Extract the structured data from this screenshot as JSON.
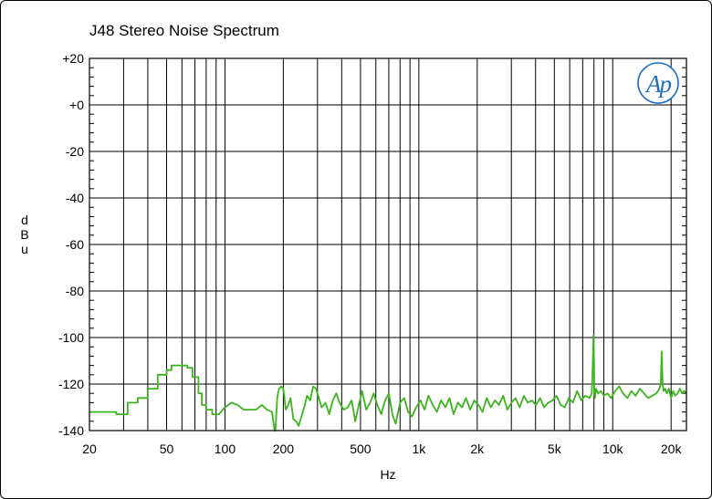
{
  "chart_data": {
    "type": "line",
    "title": "J48 Stereo Noise Spectrum",
    "xlabel": "Hz",
    "ylabel": "dBu",
    "xscale": "log",
    "xlim": [
      20,
      24000
    ],
    "ylim": [
      -140,
      20
    ],
    "grid": true,
    "x_tick_labels": [
      {
        "value": 20,
        "label": "20"
      },
      {
        "value": 50,
        "label": "50"
      },
      {
        "value": 100,
        "label": "100"
      },
      {
        "value": 200,
        "label": "200"
      },
      {
        "value": 500,
        "label": "500"
      },
      {
        "value": 1000,
        "label": "1k"
      },
      {
        "value": 2000,
        "label": "2k"
      },
      {
        "value": 5000,
        "label": "5k"
      },
      {
        "value": 10000,
        "label": "10k"
      },
      {
        "value": 20000,
        "label": "20k"
      }
    ],
    "y_tick_labels": [
      {
        "value": 20,
        "label": "+20"
      },
      {
        "value": 0,
        "label": "+0"
      },
      {
        "value": -20,
        "label": "-20"
      },
      {
        "value": -40,
        "label": "-40"
      },
      {
        "value": -60,
        "label": "-60"
      },
      {
        "value": -80,
        "label": "-80"
      },
      {
        "value": -100,
        "label": "-100"
      },
      {
        "value": -120,
        "label": "-120"
      },
      {
        "value": -140,
        "label": "-140"
      }
    ],
    "series": [
      {
        "color": "#3cb41e",
        "x": [
          20,
          27.5,
          27.5,
          31.5,
          31.5,
          35.5,
          35.5,
          40,
          40,
          45,
          45,
          50,
          50,
          53,
          53,
          64,
          64,
          68,
          68,
          73,
          73,
          76,
          76,
          80,
          80,
          86,
          86,
          93,
          100,
          108,
          116,
          125,
          135,
          145,
          155,
          165,
          175,
          180,
          182,
          186,
          190,
          195,
          200,
          206,
          212,
          218,
          225,
          233,
          240,
          248,
          256,
          265,
          275,
          285,
          295,
          305,
          315,
          330,
          345,
          360,
          375,
          390,
          410,
          430,
          450,
          470,
          490,
          510,
          535,
          560,
          585,
          610,
          640,
          670,
          700,
          730,
          760,
          800,
          840,
          880,
          920,
          970,
          1020,
          1070,
          1120,
          1180,
          1240,
          1300,
          1370,
          1440,
          1510,
          1590,
          1670,
          1750,
          1840,
          1930,
          2030,
          2130,
          2240,
          2350,
          2470,
          2590,
          2720,
          2860,
          3000,
          3150,
          3310,
          3480,
          3650,
          3830,
          4020,
          4220,
          4430,
          4650,
          4890,
          5130,
          5390,
          5660,
          5940,
          6240,
          6550,
          6880,
          7220,
          7580,
          7800,
          7900,
          7960,
          8000,
          8040,
          8100,
          8200,
          8400,
          8700,
          9000,
          9400,
          9800,
          10300,
          10800,
          11300,
          11900,
          12500,
          13100,
          13800,
          14500,
          15200,
          16000,
          16800,
          17400,
          17700,
          17900,
          18000,
          18100,
          18300,
          18600,
          19000,
          19500,
          20000,
          20500,
          21000,
          21600,
          22200,
          22800,
          23400,
          24000
        ],
        "y": [
          -132,
          -132,
          -133,
          -133,
          -128,
          -128,
          -126,
          -126,
          -122,
          -122,
          -116,
          -116,
          -114,
          -114,
          -112,
          -112,
          -113,
          -113,
          -117,
          -117,
          -124,
          -124,
          -129,
          -129,
          -131,
          -131,
          -133,
          -133,
          -130,
          -128,
          -129,
          -131,
          -131,
          -131,
          -129,
          -131,
          -132,
          -140,
          -140,
          -126,
          -122,
          -121,
          -122,
          -131,
          -129,
          -126,
          -135,
          -136,
          -138,
          -134,
          -130,
          -125,
          -127,
          -121,
          -122,
          -126,
          -130,
          -128,
          -133,
          -127,
          -124,
          -128,
          -131,
          -130,
          -127,
          -136,
          -129,
          -123,
          -131,
          -128,
          -124,
          -129,
          -133,
          -127,
          -124,
          -133,
          -137,
          -128,
          -126,
          -132,
          -134,
          -130,
          -127,
          -131,
          -125,
          -129,
          -132,
          -127,
          -130,
          -126,
          -133,
          -128,
          -130,
          -126,
          -131,
          -127,
          -129,
          -132,
          -126,
          -130,
          -127,
          -129,
          -125,
          -131,
          -128,
          -126,
          -130,
          -125,
          -128,
          -127,
          -129,
          -126,
          -130,
          -128,
          -127,
          -125,
          -129,
          -130,
          -126,
          -128,
          -123,
          -127,
          -125,
          -126,
          -124,
          -110,
          -99,
          -110,
          -124,
          -126,
          -122,
          -124,
          -123,
          -125,
          -124,
          -126,
          -123,
          -121,
          -124,
          -126,
          -123,
          -125,
          -122,
          -124,
          -126,
          -125,
          -124,
          -122,
          -120,
          -106,
          -114,
          -120,
          -123,
          -122,
          -124,
          -122,
          -126,
          -123,
          -125,
          -124,
          -122,
          -124,
          -123,
          -124
        ]
      }
    ]
  }
}
